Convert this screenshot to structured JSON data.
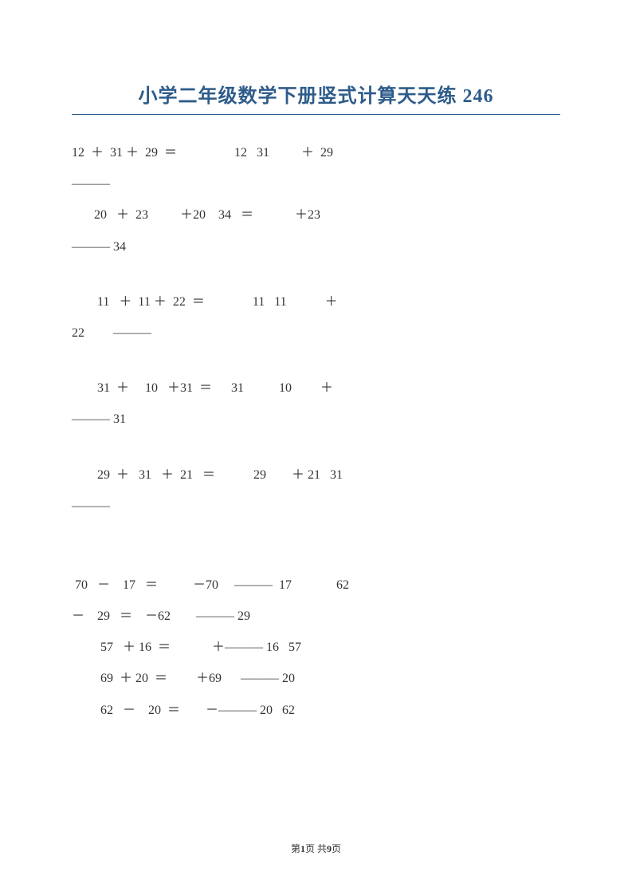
{
  "title": "小学二年级数学下册竖式计算天天练 246",
  "title_color": "#2e5c8a",
  "title_fontsize": 24,
  "body_fontsize": 16,
  "text_color": "#333333",
  "background_color": "#ffffff",
  "lines": {
    "l1": "12  ＋  31 ＋  29  ＝                  12   31          ＋  29",
    "l2": "———",
    "l3": "       20   ＋  23          ＋20    34   ＝             ＋23",
    "l4": "——— 34",
    "l5": "        11   ＋  11 ＋  22  ＝               11   11            ＋",
    "l6": "22         ———",
    "l7": "        31  ＋     10   ＋31  ＝      31           10         ＋",
    "l8": "——— 31",
    "l9": "        29  ＋   31   ＋  21   ＝            29        ＋ 21   31",
    "l10": "———",
    "l11": " 70   －    17   ＝           －70     ———  17              62",
    "l12": "－    29   ＝    －62        ——— 29",
    "l13": "         57   ＋ 16  ＝             ＋——— 16   57",
    "l14": "         69  ＋ 20  ＝         ＋69      ——— 20",
    "l15": "         62   －    20  ＝        －——— 20   62"
  },
  "footer": {
    "prefix": "第",
    "current_page": "1",
    "middle": "页   共",
    "total_pages": "9",
    "suffix": "页"
  }
}
